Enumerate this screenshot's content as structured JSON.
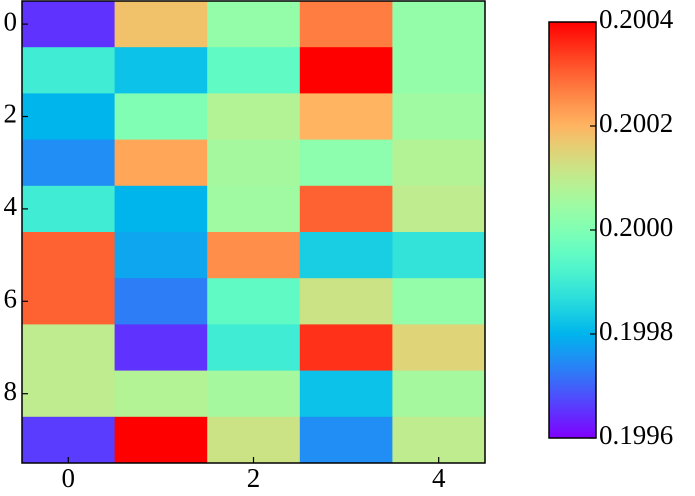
{
  "chart_data": {
    "type": "heatmap",
    "colormap": "rainbow",
    "z": [
      [
        0.19965,
        0.20018,
        0.20003,
        0.20027,
        0.20003
      ],
      [
        0.1999,
        0.19982,
        0.19995,
        0.2004,
        0.20003
      ],
      [
        0.1998,
        0.2,
        0.20008,
        0.2002,
        0.20005
      ],
      [
        0.19975,
        0.20022,
        0.20006,
        0.20002,
        0.20008
      ],
      [
        0.1999,
        0.1998,
        0.20005,
        0.2003,
        0.2001
      ],
      [
        0.2003,
        0.19978,
        0.20025,
        0.19984,
        0.19988
      ],
      [
        0.2003,
        0.19973,
        0.19995,
        0.20012,
        0.20003
      ],
      [
        0.2001,
        0.19965,
        0.1999,
        0.20035,
        0.20015
      ],
      [
        0.2001,
        0.20008,
        0.20006,
        0.19982,
        0.20006
      ],
      [
        0.19966,
        0.2004,
        0.20012,
        0.19975,
        0.2001
      ]
    ],
    "xlim": [
      -0.5,
      4.5
    ],
    "ylim": [
      9.5,
      -0.5
    ],
    "xticks": [
      0,
      2,
      4
    ],
    "yticks": [
      0,
      2,
      4,
      6,
      8
    ],
    "clim": [
      0.1996,
      0.2004
    ],
    "cticks": [
      0.1996,
      0.1998,
      {
        "value": 0.2,
        "label": "0.2000"
      },
      0.2002,
      0.2004
    ]
  }
}
